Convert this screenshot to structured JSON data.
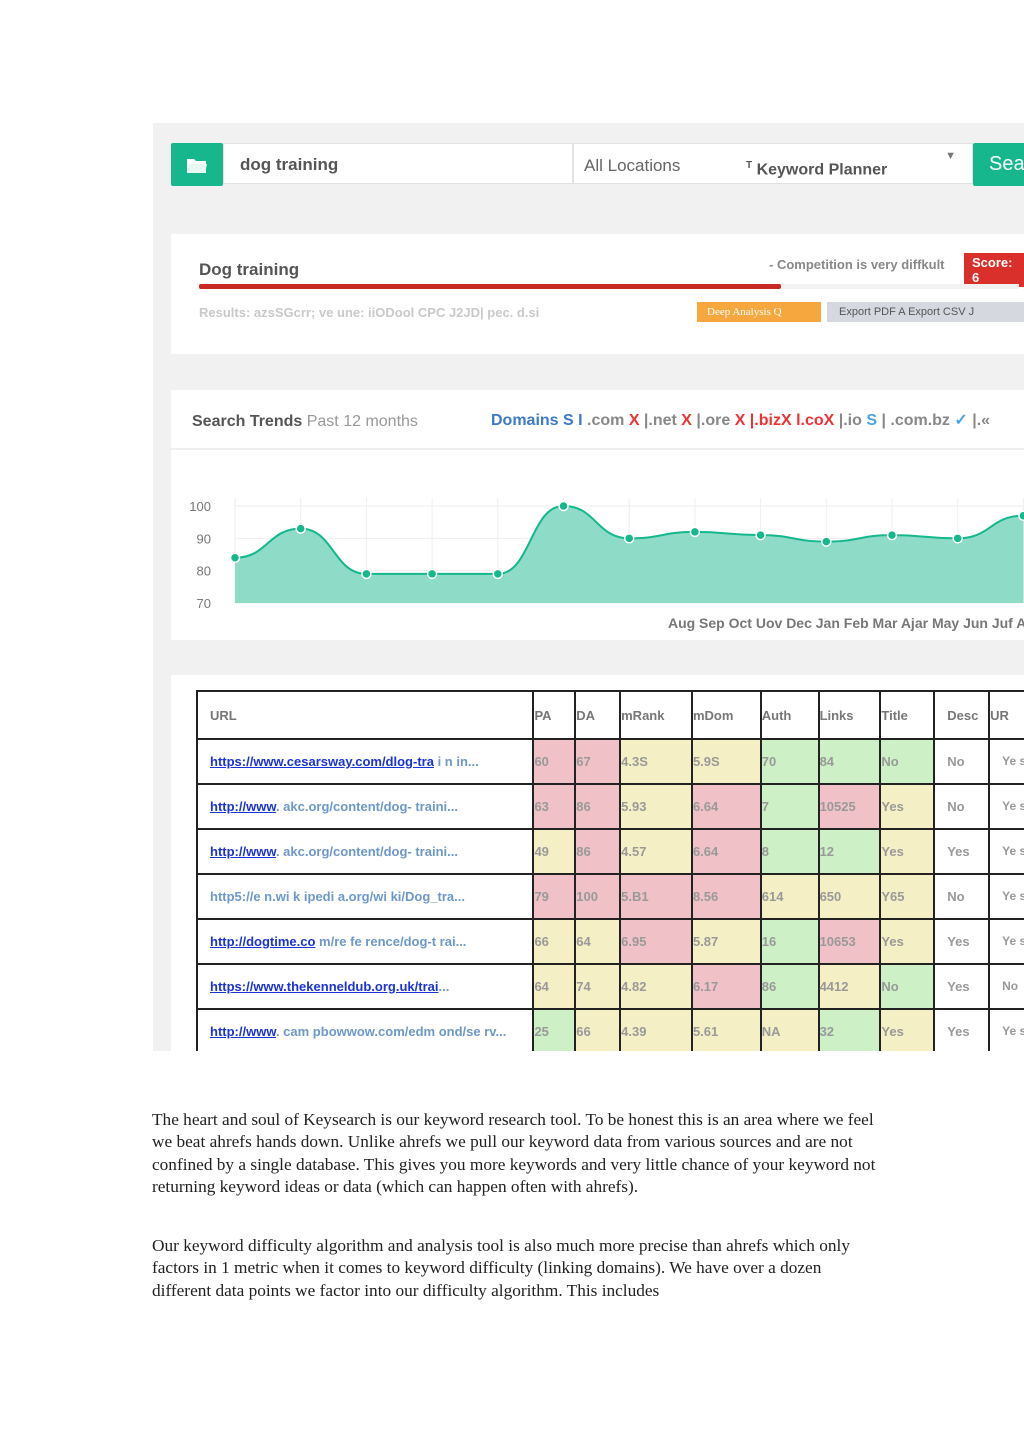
{
  "search": {
    "keyword": "dog training",
    "location": "All Locations",
    "source_mark": "T",
    "source": "Keyword Planner",
    "caret": "▼",
    "button": "Sear"
  },
  "summary": {
    "title": "Dog training",
    "competition": "- Competition is very diffkult",
    "score": "Score: 6",
    "difficulty_fill": 0.71,
    "results": "Results: azsSGcrr; ve une: iiODool CPC J2JD| pec. d.si",
    "deep_button": "Deep Analysis Q",
    "export_button": "Export PDF A Export CSV J"
  },
  "trends": {
    "title": "Search Trends",
    "subtitle": "Past 12 months",
    "domains_label": "Domains S I",
    "domains": [
      {
        "text": " .com ",
        "color": "#888"
      },
      {
        "text": "X",
        "color": "#e33"
      },
      {
        "text": " |.net ",
        "color": "#888"
      },
      {
        "text": "X",
        "color": "#e33"
      },
      {
        "text": " |.ore ",
        "color": "#888"
      },
      {
        "text": "X",
        "color": "#e33"
      },
      {
        "text": " |.bizX l.coX",
        "color": "#e33"
      },
      {
        "text": " |.io ",
        "color": "#888"
      },
      {
        "text": "S",
        "color": "#4da3e0"
      },
      {
        "text": " | .com.bz ",
        "color": "#888"
      },
      {
        "text": "✓",
        "color": "#4da3e0"
      },
      {
        "text": " |.«",
        "color": "#888"
      }
    ]
  },
  "chart_data": {
    "type": "area",
    "title": "",
    "xlabel": "",
    "ylabel": "",
    "ylim": [
      70,
      100
    ],
    "yticks": [
      100,
      90,
      80,
      70
    ],
    "x_axis_text": "Aug Sep Oct Uov Dec Jan Feb Mar Ajar May Jun Juf At",
    "values": [
      84,
      93,
      79,
      79,
      79,
      100,
      90,
      92,
      91,
      89,
      91,
      90,
      97
    ],
    "color": "#16b78d",
    "fill": "#8edcc7"
  },
  "table": {
    "headers": [
      "URL",
      "PA",
      "DA",
      "mRank",
      "mDom",
      "Auth",
      "Links",
      "Title",
      "Desc",
      "UR"
    ],
    "rows": [
      {
        "url_link": "https://www.cesarsway.com/dlog-tra",
        "url_rest": " i n in...",
        "cells": [
          "60",
          "67",
          "4.3S",
          "5.9S",
          "70",
          "84",
          "No",
          "No",
          "Ye s"
        ],
        "colors": [
          "red",
          "red",
          "yel",
          "yel",
          "grn",
          "grn",
          "grn",
          "wht",
          "wht"
        ]
      },
      {
        "url_link": "http://www",
        "url_rest": ". akc.org/content/dog- traini...",
        "cells": [
          "63",
          "86",
          "5.93",
          "6.64",
          "7",
          "10525",
          "Yes",
          "No",
          "Ye s"
        ],
        "colors": [
          "red",
          "red",
          "yel",
          "red",
          "grn",
          "red",
          "yel",
          "wht",
          "wht"
        ]
      },
      {
        "url_link": "http://www",
        "url_rest": ". akc.org/content/dog- traini...",
        "cells": [
          "49",
          "86",
          "4.57",
          "6.64",
          "8",
          "12",
          "Yes",
          "Yes",
          "Ye s"
        ],
        "colors": [
          "yel",
          "red",
          "yel",
          "red",
          "grn",
          "grn",
          "yel",
          "wht",
          "wht"
        ]
      },
      {
        "url_link": "",
        "url_rest": "http5://e n.wi k ipedi a.org/wi ki/Dog_tra...",
        "cells": [
          "79",
          "100",
          "5.B1",
          "8.56",
          "614",
          "650",
          "Y65",
          "No",
          "Ye s"
        ],
        "colors": [
          "red",
          "red",
          "red",
          "red",
          "yel",
          "yel",
          "yel",
          "wht",
          "wht"
        ]
      },
      {
        "url_link": "http://dogtime.co",
        "url_rest": " m/re fe rence/dog-t rai...",
        "cells": [
          "66",
          "64",
          "6.95",
          "5.87",
          "16",
          "10653",
          "Yes",
          "Yes",
          "Ye s"
        ],
        "colors": [
          "yel",
          "yel",
          "red",
          "yel",
          "grn",
          "red",
          "yel",
          "wht",
          "wht"
        ]
      },
      {
        "url_link": "https://www.thekenneldub.org.uk/trai",
        "url_rest": "...",
        "cells": [
          "64",
          "74",
          "4.82",
          "6.17",
          "86",
          "4412",
          "No",
          "Yes",
          "No"
        ],
        "colors": [
          "yel",
          "yel",
          "yel",
          "red",
          "grn",
          "yel",
          "grn",
          "wht",
          "wht"
        ]
      },
      {
        "url_link": "http://www",
        "url_rest": ". cam pbowwow.com/edm ond/se rv...",
        "cells": [
          "25",
          "66",
          "4.39",
          "5.61",
          "NA",
          "32",
          "Yes",
          "Yes",
          "Ye s"
        ],
        "colors": [
          "grn",
          "yel",
          "yel",
          "yel",
          "yel",
          "grn",
          "yel",
          "wht",
          "wht"
        ]
      }
    ]
  },
  "body_text": {
    "para1": "The heart and soul of Keysearch is our keyword research tool. To be honest this is an area where we feel we beat ahrefs hands down. Unlike ahrefs we pull our keyword data from various sources and are not confined by a single database. This gives you more keywords and very little chance of your keyword not returning keyword ideas or data (which can happen often with ahrefs).",
    "para2": "Our keyword difficulty algorithm and analysis tool is also much more precise than ahrefs which only factors in 1 metric when it comes to keyword difficulty (linking domains). We have over a dozen different data points we factor into our difficulty algorithm. This includes"
  }
}
